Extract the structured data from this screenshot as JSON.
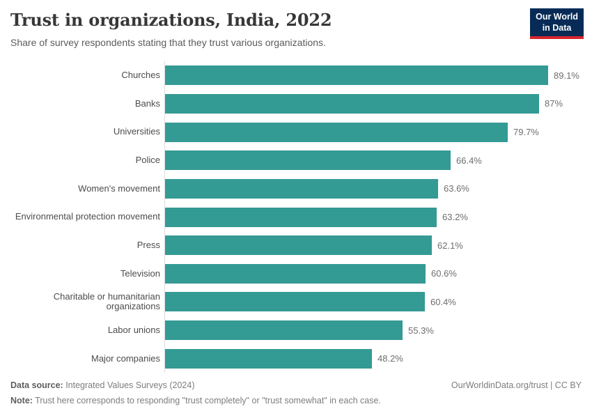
{
  "header": {
    "title": "Trust in organizations, India, 2022",
    "subtitle": "Share of survey respondents stating that they trust various organizations.",
    "logo": {
      "line1": "Our World",
      "line2": "in Data"
    }
  },
  "chart_data": {
    "type": "bar",
    "orientation": "horizontal",
    "title": "Trust in organizations, India, 2022",
    "categories": [
      "Churches",
      "Banks",
      "Universities",
      "Police",
      "Women's movement",
      "Environmental protection movement",
      "Press",
      "Television",
      "Charitable or humanitarian organizations",
      "Labor unions",
      "Major companies"
    ],
    "values": [
      89.1,
      87,
      79.7,
      66.4,
      63.6,
      63.2,
      62.1,
      60.6,
      60.4,
      55.3,
      48.2
    ],
    "value_labels": [
      "89.1%",
      "87%",
      "79.7%",
      "66.4%",
      "63.6%",
      "63.2%",
      "62.1%",
      "60.6%",
      "60.4%",
      "55.3%",
      "48.2%"
    ],
    "unit": "%",
    "xlim": [
      0,
      96
    ],
    "grid": false,
    "legend": "none",
    "bar_color": "#349a94",
    "axis_line_color": "#dcdcdc"
  },
  "footer": {
    "datasource_label": "Data source:",
    "datasource_value": " Integrated Values Surveys (2024)",
    "attribution": "OurWorldinData.org/trust | CC BY",
    "note_label": "Note:",
    "note_value": " Trust here corresponds to responding \"trust completely\" or \"trust somewhat\" in each case."
  }
}
